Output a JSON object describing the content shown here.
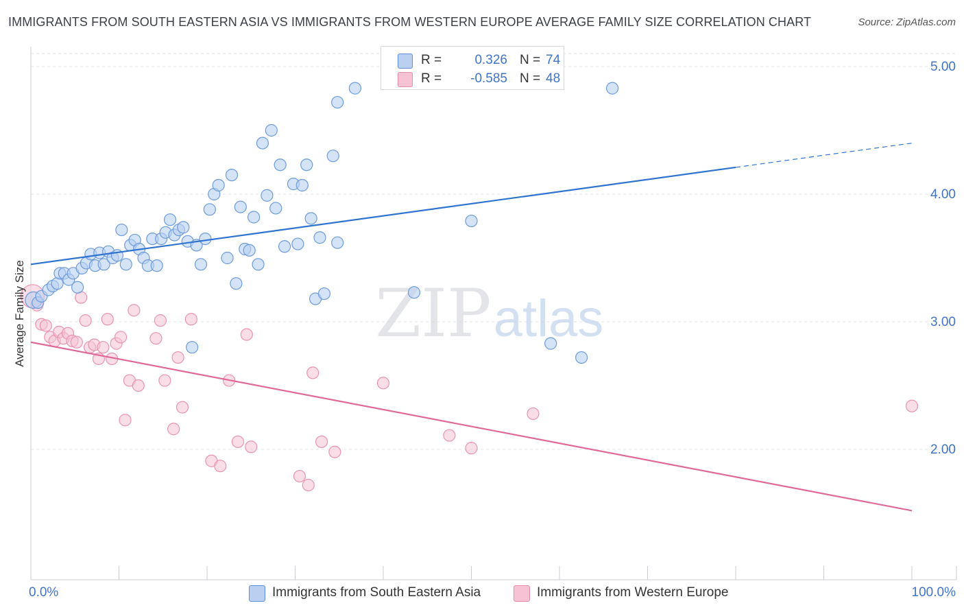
{
  "title": "IMMIGRANTS FROM SOUTH EASTERN ASIA VS IMMIGRANTS FROM WESTERN EUROPE AVERAGE FAMILY SIZE CORRELATION CHART",
  "source": "Source: ZipAtlas.com",
  "watermark": {
    "zip": "ZIP",
    "atlas": "atlas"
  },
  "stats": {
    "r_label": "R =",
    "n_label": "N =",
    "blue": {
      "r": "0.326",
      "n": "74"
    },
    "pink": {
      "r": "-0.585",
      "n": "48"
    }
  },
  "legend": {
    "blue": "Immigrants from South Eastern Asia",
    "pink": "Immigrants from Western Europe"
  },
  "colors": {
    "blue": "#2f73d1",
    "blue_fill": "#b9d0f1",
    "pink": "#e0699a",
    "pink_fill": "#f6c2d4",
    "grid": "#dfe3e8",
    "tick_label": "#3f74c9"
  },
  "chart_data": {
    "type": "scatter",
    "title": "IMMIGRANTS FROM SOUTH EASTERN ASIA VS IMMIGRANTS FROM WESTERN EUROPE AVERAGE FAMILY SIZE CORRELATION CHART",
    "xlabel": "",
    "ylabel": "Average Family Size",
    "xlim": [
      0,
      100
    ],
    "ylim": [
      1.0,
      5.1
    ],
    "x_tick_labels": [
      {
        "value": 0,
        "label": "0.0%"
      },
      {
        "value": 100,
        "label": "100.0%"
      }
    ],
    "y_ticks": [
      {
        "value": 2.0,
        "label": "2.00"
      },
      {
        "value": 3.0,
        "label": "3.00"
      },
      {
        "value": 4.0,
        "label": "4.00"
      },
      {
        "value": 5.0,
        "label": "5.00"
      }
    ],
    "series": [
      {
        "name": "Immigrants from South Eastern Asia",
        "color": "#2f73d1",
        "R": 0.326,
        "N": 74,
        "trend": {
          "x0": 0,
          "y0": 3.45,
          "x1": 80,
          "y1": 4.21,
          "dash_x1": 100,
          "dash_y1": 4.4
        },
        "points": [
          [
            0.3,
            3.17
          ],
          [
            0.8,
            3.15
          ],
          [
            1.2,
            3.2
          ],
          [
            2.0,
            3.25
          ],
          [
            2.5,
            3.28
          ],
          [
            3.0,
            3.3
          ],
          [
            3.3,
            3.38
          ],
          [
            3.8,
            3.38
          ],
          [
            4.3,
            3.33
          ],
          [
            4.8,
            3.38
          ],
          [
            5.3,
            3.27
          ],
          [
            5.8,
            3.42
          ],
          [
            6.3,
            3.46
          ],
          [
            6.8,
            3.53
          ],
          [
            7.3,
            3.44
          ],
          [
            7.8,
            3.54
          ],
          [
            8.3,
            3.45
          ],
          [
            8.8,
            3.55
          ],
          [
            9.3,
            3.5
          ],
          [
            9.8,
            3.52
          ],
          [
            10.3,
            3.72
          ],
          [
            10.8,
            3.45
          ],
          [
            11.3,
            3.6
          ],
          [
            11.8,
            3.64
          ],
          [
            12.3,
            3.57
          ],
          [
            12.8,
            3.5
          ],
          [
            13.3,
            3.44
          ],
          [
            13.8,
            3.65
          ],
          [
            14.3,
            3.44
          ],
          [
            14.8,
            3.65
          ],
          [
            15.3,
            3.7
          ],
          [
            15.8,
            3.8
          ],
          [
            16.3,
            3.68
          ],
          [
            16.8,
            3.72
          ],
          [
            17.3,
            3.74
          ],
          [
            17.8,
            3.63
          ],
          [
            18.3,
            2.8
          ],
          [
            18.8,
            3.6
          ],
          [
            19.3,
            3.45
          ],
          [
            19.8,
            3.65
          ],
          [
            20.3,
            3.88
          ],
          [
            20.8,
            4.0
          ],
          [
            21.3,
            4.07
          ],
          [
            22.3,
            3.5
          ],
          [
            22.8,
            4.15
          ],
          [
            23.3,
            3.3
          ],
          [
            23.8,
            3.9
          ],
          [
            24.3,
            3.57
          ],
          [
            24.8,
            3.56
          ],
          [
            25.3,
            3.82
          ],
          [
            25.8,
            3.45
          ],
          [
            26.3,
            4.4
          ],
          [
            26.8,
            3.99
          ],
          [
            27.3,
            4.5
          ],
          [
            27.8,
            3.89
          ],
          [
            28.3,
            4.23
          ],
          [
            28.8,
            3.59
          ],
          [
            29.8,
            4.08
          ],
          [
            30.3,
            3.61
          ],
          [
            30.8,
            4.07
          ],
          [
            31.3,
            4.23
          ],
          [
            31.8,
            3.81
          ],
          [
            32.3,
            3.18
          ],
          [
            32.8,
            3.66
          ],
          [
            33.3,
            3.22
          ],
          [
            34.3,
            4.3
          ],
          [
            34.8,
            3.62
          ],
          [
            34.8,
            4.72
          ],
          [
            36.8,
            4.83
          ],
          [
            43.5,
            3.23
          ],
          [
            50.0,
            3.79
          ],
          [
            59.0,
            2.83
          ],
          [
            62.5,
            2.72
          ],
          [
            66.0,
            4.83
          ]
        ]
      },
      {
        "name": "Immigrants from Western Europe",
        "color": "#e0699a",
        "R": -0.585,
        "N": 48,
        "trend": {
          "x0": 0,
          "y0": 2.84,
          "x1": 100,
          "y1": 1.52
        },
        "points": [
          [
            0.2,
            3.2
          ],
          [
            0.7,
            3.13
          ],
          [
            1.2,
            2.98
          ],
          [
            1.7,
            2.97
          ],
          [
            2.2,
            2.88
          ],
          [
            2.7,
            2.85
          ],
          [
            3.2,
            2.92
          ],
          [
            3.7,
            2.87
          ],
          [
            4.2,
            2.91
          ],
          [
            4.7,
            2.85
          ],
          [
            5.2,
            2.84
          ],
          [
            5.7,
            3.19
          ],
          [
            6.2,
            3.01
          ],
          [
            6.7,
            2.8
          ],
          [
            7.2,
            2.82
          ],
          [
            7.7,
            2.71
          ],
          [
            8.2,
            2.8
          ],
          [
            8.7,
            3.02
          ],
          [
            9.2,
            2.71
          ],
          [
            9.7,
            2.83
          ],
          [
            10.2,
            2.88
          ],
          [
            10.7,
            2.23
          ],
          [
            11.2,
            2.54
          ],
          [
            11.7,
            3.09
          ],
          [
            12.2,
            2.5
          ],
          [
            14.2,
            2.87
          ],
          [
            14.7,
            3.01
          ],
          [
            15.2,
            2.54
          ],
          [
            16.2,
            2.16
          ],
          [
            16.7,
            2.72
          ],
          [
            17.2,
            2.33
          ],
          [
            18.2,
            3.02
          ],
          [
            20.5,
            1.91
          ],
          [
            21.5,
            1.87
          ],
          [
            22.5,
            2.54
          ],
          [
            23.5,
            2.06
          ],
          [
            24.5,
            2.9
          ],
          [
            25.0,
            2.02
          ],
          [
            30.5,
            1.79
          ],
          [
            31.5,
            1.72
          ],
          [
            32.0,
            2.6
          ],
          [
            33.0,
            2.06
          ],
          [
            34.5,
            1.98
          ],
          [
            40.0,
            2.52
          ],
          [
            47.5,
            2.11
          ],
          [
            50.0,
            2.01
          ],
          [
            57.0,
            2.28
          ],
          [
            100.0,
            2.34
          ]
        ]
      }
    ]
  }
}
